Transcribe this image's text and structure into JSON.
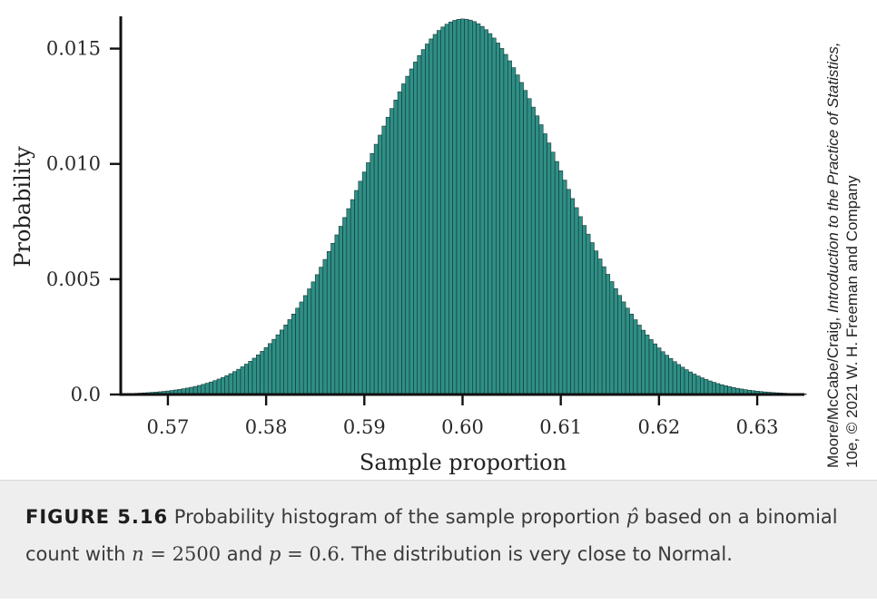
{
  "chart_data": {
    "type": "bar",
    "title": "",
    "xlabel": "Sample proportion",
    "ylabel": "Probability",
    "xlim": [
      0.5652,
      0.6348
    ],
    "ylim": [
      0,
      0.0164
    ],
    "xticks": [
      0.57,
      0.58,
      0.59,
      0.6,
      0.61,
      0.62,
      0.63
    ],
    "xtick_labels": [
      "0.57",
      "0.58",
      "0.59",
      "0.60",
      "0.61",
      "0.62",
      "0.63"
    ],
    "yticks": [
      0,
      0.005,
      0.01,
      0.015
    ],
    "ytick_labels": [
      "0.0",
      "0.005",
      "0.010",
      "0.015"
    ],
    "distribution": "binomial",
    "n": 2500,
    "p": 0.6,
    "k_range": [
      1413,
      1587
    ],
    "x_step": 0.0004,
    "bar_color": "#2f8f86",
    "bar_edge_color": "#0f2d2a",
    "grid": false,
    "legend": "none"
  },
  "credit": {
    "line1_prefix": "Moore/McCabe/Craig, ",
    "line1_title": "Introduction to the Practice of Statistics,",
    "line2": "10e, © 2021 W. H. Freeman and Company"
  },
  "caption": {
    "figure_label": "FIGURE 5.16",
    "text_1": " Probability histogram of the sample proportion ",
    "p_hat": "p̂",
    "text_2": " based on a binomial count with ",
    "n_symbol": "n",
    "equals_1": " = ",
    "n_value": "2500",
    "text_3": " and ",
    "p_symbol": "p",
    "equals_2": " = ",
    "p_value": "0.6",
    "text_4": ". The distribution is very close to Normal."
  }
}
